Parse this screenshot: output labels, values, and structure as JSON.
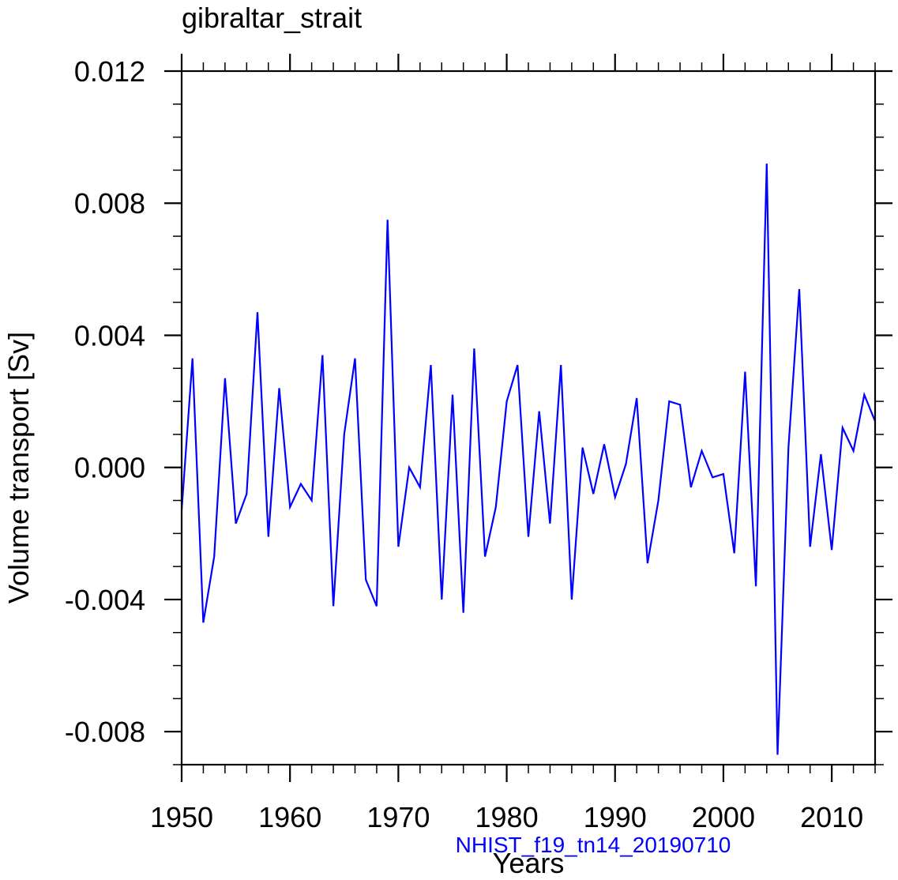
{
  "chart_data": {
    "type": "line",
    "title": "gibraltar_strait",
    "xlabel": "Years",
    "ylabel": "Volume transport [Sv]",
    "caption": "NHIST_f19_tn14_20190710",
    "xlim": [
      1950,
      2014
    ],
    "ylim": [
      -0.009,
      0.012
    ],
    "xticks": [
      1950,
      1960,
      1970,
      1980,
      1990,
      2000,
      2010
    ],
    "yticks": [
      "0.012",
      "0.008",
      "0.004",
      "0.000",
      "-0.004",
      "-0.008"
    ],
    "grid": false,
    "legend": null,
    "series": [
      {
        "name": "NHIST_f19_tn14_20190710",
        "color": "#0000ff",
        "x": [
          1950,
          1951,
          1952,
          1953,
          1954,
          1955,
          1956,
          1957,
          1958,
          1959,
          1960,
          1961,
          1962,
          1963,
          1964,
          1965,
          1966,
          1967,
          1968,
          1969,
          1970,
          1971,
          1972,
          1973,
          1974,
          1975,
          1976,
          1977,
          1978,
          1979,
          1980,
          1981,
          1982,
          1983,
          1984,
          1985,
          1986,
          1987,
          1988,
          1989,
          1990,
          1991,
          1992,
          1993,
          1994,
          1995,
          1996,
          1997,
          1998,
          1999,
          2000,
          2001,
          2002,
          2003,
          2004,
          2005,
          2006,
          2007,
          2008,
          2009,
          2010,
          2011,
          2012,
          2013,
          2014
        ],
        "values": [
          -0.0013,
          0.0033,
          -0.0047,
          -0.0027,
          0.0027,
          -0.0017,
          -0.0008,
          0.0047,
          -0.0021,
          0.0024,
          -0.0012,
          -0.0005,
          -0.001,
          0.0034,
          -0.0042,
          0.001,
          0.0033,
          -0.0034,
          -0.0042,
          0.0075,
          -0.0024,
          0.0,
          -0.0006,
          0.0031,
          -0.004,
          0.0022,
          -0.0044,
          0.0036,
          -0.0027,
          -0.0012,
          0.002,
          0.0031,
          -0.0021,
          0.0017,
          -0.0017,
          0.0031,
          -0.004,
          0.0006,
          -0.0008,
          0.0007,
          -0.0009,
          0.0001,
          0.0021,
          -0.0029,
          -0.001,
          0.002,
          0.0019,
          -0.0006,
          0.0005,
          -0.0003,
          -0.0002,
          -0.0026,
          0.0029,
          -0.0036,
          0.0092,
          -0.0087,
          0.0006,
          0.0054,
          -0.0024,
          0.0004,
          -0.0025,
          0.0012,
          0.0005,
          0.0022,
          0.0014
        ]
      }
    ]
  }
}
